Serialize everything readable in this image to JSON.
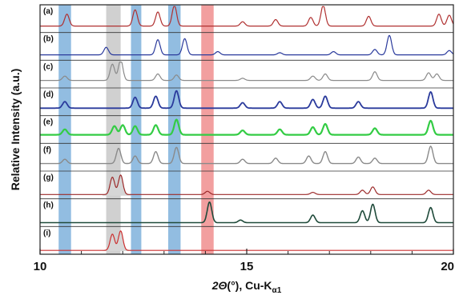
{
  "chart_data": {
    "type": "line",
    "title": "",
    "xlabel": "2Θ(°), Cu-Kα1",
    "xlabel_parts": {
      "var": "2Θ",
      "unit": "(°), Cu-K",
      "sub": "α1"
    },
    "ylabel": "Relative Intensity (a.u.)",
    "xlim": [
      10,
      20
    ],
    "xticks": [
      10,
      15,
      20
    ],
    "grid": false,
    "legend": "none",
    "highlight_bands": [
      {
        "range": [
          10.45,
          10.75
        ],
        "color": "#7fb2dc"
      },
      {
        "range": [
          11.6,
          11.95
        ],
        "color": "#c8c8c8"
      },
      {
        "range": [
          12.2,
          12.45
        ],
        "color": "#7fb2dc"
      },
      {
        "range": [
          13.1,
          13.4
        ],
        "color": "#7fb2dc"
      },
      {
        "range": [
          13.9,
          14.2
        ],
        "color": "#f08e8e"
      }
    ],
    "series": [
      {
        "label": "(a)",
        "color": "#b03030",
        "width": 1.2,
        "fill": null,
        "baseline": 0.15,
        "peaks": [
          [
            10.65,
            0.55
          ],
          [
            12.3,
            0.75
          ],
          [
            12.85,
            0.65
          ],
          [
            13.25,
            0.95
          ],
          [
            14.9,
            0.2
          ],
          [
            15.7,
            0.3
          ],
          [
            16.55,
            0.4
          ],
          [
            16.85,
            0.95
          ],
          [
            17.95,
            0.45
          ],
          [
            19.65,
            0.55
          ],
          [
            19.9,
            0.5
          ]
        ]
      },
      {
        "label": "(b)",
        "color": "#2a3a9c",
        "width": 1.2,
        "fill": null,
        "baseline": 0.1,
        "peaks": [
          [
            11.6,
            0.35
          ],
          [
            12.85,
            0.7
          ],
          [
            13.5,
            0.75
          ],
          [
            14.3,
            0.15
          ],
          [
            15.8,
            0.1
          ],
          [
            17.1,
            0.15
          ],
          [
            18.1,
            0.25
          ],
          [
            18.45,
            0.9
          ],
          [
            19.9,
            0.2
          ]
        ]
      },
      {
        "label": "(c)",
        "color": "#8a8a8a",
        "width": 1.2,
        "fill": null,
        "baseline": 0.2,
        "peaks": [
          [
            10.6,
            0.2
          ],
          [
            11.75,
            0.75
          ],
          [
            11.95,
            0.95
          ],
          [
            12.85,
            0.3
          ],
          [
            13.3,
            0.25
          ],
          [
            14.9,
            0.1
          ],
          [
            16.6,
            0.2
          ],
          [
            16.9,
            0.3
          ],
          [
            18.1,
            0.4
          ],
          [
            19.4,
            0.35
          ],
          [
            19.6,
            0.3
          ]
        ]
      },
      {
        "label": "(d)",
        "color": "#2a3a9c",
        "width": 1.8,
        "fill": null,
        "baseline": 0.2,
        "peaks": [
          [
            10.6,
            0.3
          ],
          [
            12.3,
            0.5
          ],
          [
            12.8,
            0.55
          ],
          [
            13.3,
            0.8
          ],
          [
            14.9,
            0.25
          ],
          [
            15.8,
            0.3
          ],
          [
            16.6,
            0.4
          ],
          [
            16.9,
            0.55
          ],
          [
            17.7,
            0.3
          ],
          [
            19.45,
            0.75
          ]
        ]
      },
      {
        "label": "(e)",
        "color": "#33cc44",
        "width": 2.2,
        "fill": null,
        "baseline": 0.25,
        "peaks": [
          [
            10.6,
            0.25
          ],
          [
            11.8,
            0.4
          ],
          [
            12.0,
            0.45
          ],
          [
            12.3,
            0.4
          ],
          [
            12.8,
            0.45
          ],
          [
            13.3,
            0.7
          ],
          [
            14.9,
            0.2
          ],
          [
            15.8,
            0.25
          ],
          [
            16.6,
            0.35
          ],
          [
            16.9,
            0.5
          ],
          [
            18.1,
            0.3
          ],
          [
            19.45,
            0.65
          ]
        ]
      },
      {
        "label": "(f)",
        "color": "#8a8a8a",
        "width": 1.4,
        "fill": null,
        "baseline": 0.2,
        "peaks": [
          [
            10.6,
            0.2
          ],
          [
            11.9,
            0.7
          ],
          [
            12.3,
            0.35
          ],
          [
            12.8,
            0.55
          ],
          [
            13.3,
            0.75
          ],
          [
            14.9,
            0.2
          ],
          [
            15.7,
            0.25
          ],
          [
            16.5,
            0.35
          ],
          [
            16.9,
            0.55
          ],
          [
            17.7,
            0.3
          ],
          [
            18.1,
            0.25
          ],
          [
            19.45,
            0.8
          ]
        ]
      },
      {
        "label": "(g)",
        "color": "#9c2a2a",
        "width": 1.2,
        "fill": "#d6d6d6",
        "fill_range": [
          11.5,
          12.2
        ],
        "baseline": 0.05,
        "peaks": [
          [
            11.75,
            0.8
          ],
          [
            11.95,
            0.9
          ],
          [
            14.05,
            0.15
          ],
          [
            16.6,
            0.1
          ],
          [
            17.8,
            0.2
          ],
          [
            18.05,
            0.35
          ],
          [
            19.4,
            0.2
          ]
        ]
      },
      {
        "label": "(h)",
        "color": "#1f4a3a",
        "width": 1.6,
        "fill": null,
        "baseline": 0.03,
        "peaks": [
          [
            14.1,
            0.95
          ],
          [
            14.85,
            0.12
          ],
          [
            16.6,
            0.35
          ],
          [
            17.8,
            0.55
          ],
          [
            18.05,
            0.85
          ],
          [
            19.45,
            0.7
          ]
        ]
      },
      {
        "label": "(i)",
        "color": "#cc3030",
        "width": 1.2,
        "fill": "#d6d6d6",
        "fill_range": [
          11.5,
          12.2
        ],
        "baseline": 0.03,
        "peaks": [
          [
            11.75,
            0.75
          ],
          [
            11.95,
            0.9
          ]
        ]
      }
    ]
  }
}
